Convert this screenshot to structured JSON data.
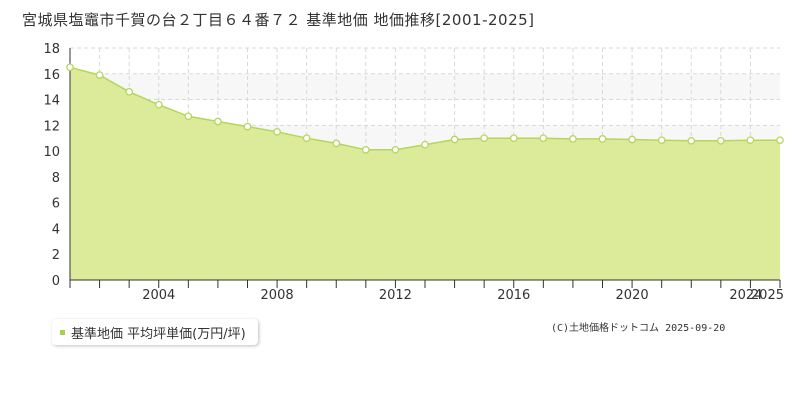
{
  "title": "宮城県塩竈市千賀の台２丁目６４番７２ 基準地価 地価推移[2001-2025]",
  "legend": {
    "label": "基準地価 平均坪単価(万円/坪)"
  },
  "copyright": "(C)土地価格ドットコム 2025-09-20",
  "colors": {
    "fill": "#dbeb9a",
    "line": "#b5d65a",
    "point_fill": "#ffffff",
    "point_stroke": "#b5d65a",
    "grid": "#d8d8d8",
    "band": "#f7f7f7",
    "legend_marker": "#a8d24a"
  },
  "chart_data": {
    "type": "area",
    "title": "",
    "xlabel": "",
    "ylabel": "",
    "xlim": [
      2001,
      2025
    ],
    "ylim": [
      0,
      18
    ],
    "y_ticks": [
      0,
      2,
      4,
      6,
      8,
      10,
      12,
      14,
      16,
      18
    ],
    "x_tick_labels": [
      "2004",
      "2008",
      "2012",
      "2016",
      "2020",
      "2024",
      "2025"
    ],
    "grid": true,
    "legend_position": "bottom-left",
    "series": [
      {
        "name": "基準地価 平均坪単価(万円/坪)",
        "x": [
          2001,
          2002,
          2003,
          2004,
          2005,
          2006,
          2007,
          2008,
          2009,
          2010,
          2011,
          2012,
          2013,
          2014,
          2015,
          2016,
          2017,
          2018,
          2019,
          2020,
          2021,
          2022,
          2023,
          2024,
          2025
        ],
        "values": [
          16.5,
          15.9,
          14.6,
          13.6,
          12.7,
          12.3,
          11.9,
          11.5,
          11.0,
          10.6,
          10.1,
          10.1,
          10.5,
          10.9,
          11.0,
          11.0,
          11.0,
          10.95,
          10.95,
          10.9,
          10.85,
          10.8,
          10.8,
          10.85,
          10.85
        ]
      }
    ]
  }
}
